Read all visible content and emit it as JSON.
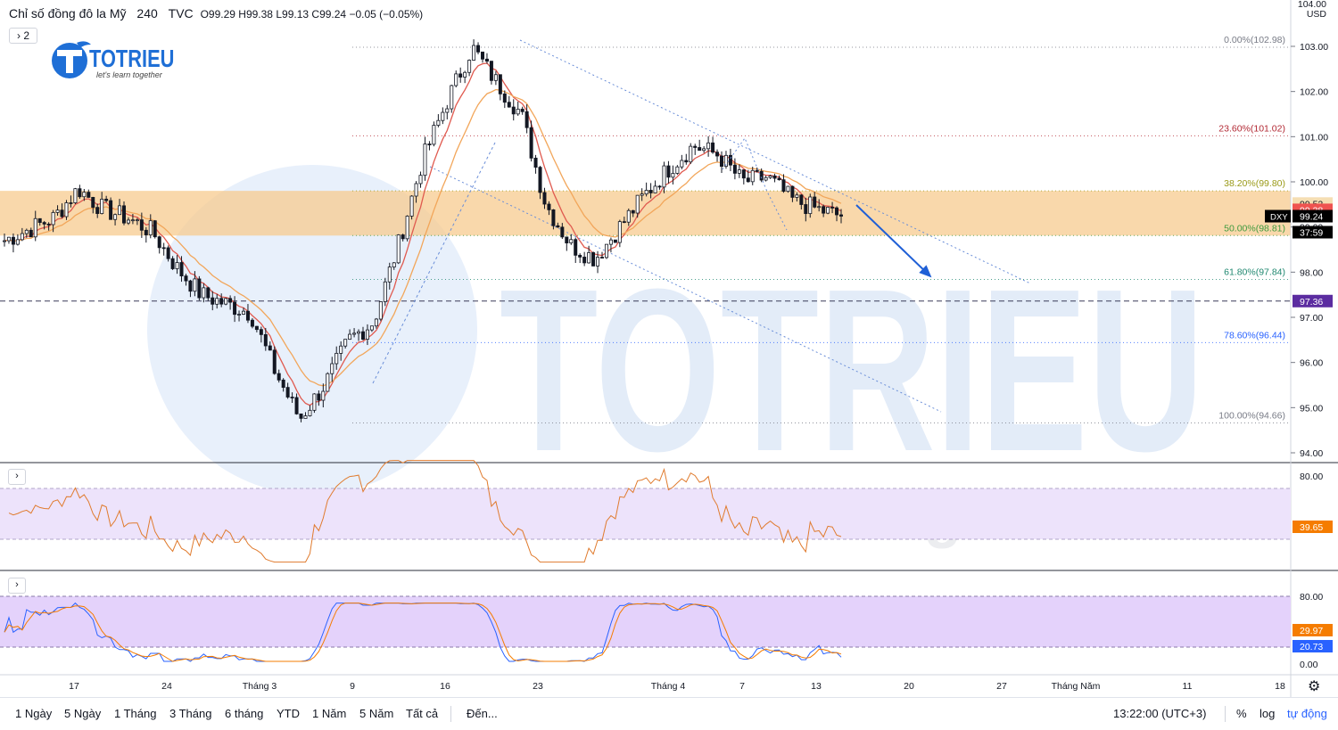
{
  "header": {
    "symbol": "Chỉ số đồng đô la Mỹ",
    "interval": "240",
    "source": "TVC",
    "open_label": "O",
    "open": "99.29",
    "high_label": "H",
    "high": "99.38",
    "low_label": "L",
    "low": "99.13",
    "close_label": "C",
    "close": "99.24",
    "change": "−0.05 (−0.05%)",
    "collapsed_count": "2"
  },
  "logo": {
    "name": "TOTRIEU",
    "tagline": "let's learn together"
  },
  "watermark": {
    "title": "TOTRIEU",
    "tagline": "let's learn together"
  },
  "price_scale": {
    "currency_top": "104.00",
    "currency": "USD",
    "ticks": [
      "103.00",
      "102.00",
      "101.00",
      "100.00",
      "99.00",
      "98.00",
      "97.00",
      "96.00",
      "95.00",
      "94.00"
    ]
  },
  "price_badges": [
    {
      "text": "99.52",
      "price": 99.52,
      "bg": "#f5deb3",
      "fg": "#131722"
    },
    {
      "text": "99.38",
      "price": 99.38,
      "bg": "#ef5350",
      "fg": "#ffffff"
    },
    {
      "text": "99.24",
      "price": 99.24,
      "bg": "#000000",
      "fg": "#ffffff",
      "tag": "DXY"
    },
    {
      "text": "37:59",
      "price": 98.92,
      "bg": "#000000",
      "fg": "#ffffff"
    },
    {
      "text": "97.36",
      "price": 97.36,
      "bg": "#5b2ca0",
      "fg": "#ffffff"
    }
  ],
  "fibonacci": [
    {
      "label": "0.00%(102.98)",
      "price": 102.98,
      "color": "#787b86"
    },
    {
      "label": "23.60%(101.02)",
      "price": 101.02,
      "color": "#b22833"
    },
    {
      "label": "38.20%(99.80)",
      "price": 99.8,
      "color": "#9a9a18"
    },
    {
      "label": "50.00%(98.81)",
      "price": 98.81,
      "color": "#3f9a3f"
    },
    {
      "label": "61.80%(97.84)",
      "price": 97.84,
      "color": "#208870"
    },
    {
      "label": "78.60%(96.44)",
      "price": 96.44,
      "color": "#2962ff"
    },
    {
      "label": "100.00%(94.66)",
      "price": 94.66,
      "color": "#787b86"
    }
  ],
  "zone": {
    "top": 99.8,
    "bottom": 98.81,
    "color": "#f7c98a"
  },
  "horizontal_line_price": 97.36,
  "rsi_panel": {
    "ticks": [
      "80.00"
    ],
    "value": "39.65",
    "value_bg": "#f57c00",
    "band": [
      30,
      70
    ],
    "line_color": "#f57c00"
  },
  "stoch_panel": {
    "ticks": [
      "80.00",
      "0.00"
    ],
    "value_k": "29.97",
    "value_d": "20.73",
    "k_bg": "#f57c00",
    "d_bg": "#2962ff"
  },
  "time_axis": [
    "17",
    "24",
    "Tháng 3",
    "9",
    "16",
    "23",
    "Tháng 4",
    "7",
    "13",
    "20",
    "27",
    "Tháng Năm",
    "11",
    "18"
  ],
  "bottom_bar": {
    "ranges": [
      "1 Ngày",
      "5 Ngày",
      "1 Tháng",
      "3 Tháng",
      "6 tháng",
      "YTD",
      "1 Năm",
      "5 Năm",
      "Tất cả"
    ],
    "goto": "Đến...",
    "clock": "13:22:00 (UTC+3)",
    "percent": "%",
    "log": "log",
    "auto": "tự động",
    "accent": "#2962ff"
  },
  "chart_data": {
    "type": "candlestick",
    "title": "Chỉ số đồng đô la Mỹ · 240 · TVC",
    "ylabel": "USD",
    "ylim": [
      93.8,
      104.0
    ],
    "x_ticks": [
      "17",
      "24",
      "Tháng 3",
      "9",
      "16",
      "23",
      "Tháng 4",
      "7",
      "13",
      "20",
      "27",
      "Tháng Năm",
      "11",
      "18"
    ],
    "close_path": [
      {
        "x": "Feb 12",
        "y": 98.7
      },
      {
        "x": "Feb 17",
        "y": 98.95
      },
      {
        "x": "Feb 19",
        "y": 99.2
      },
      {
        "x": "Feb 20",
        "y": 99.85
      },
      {
        "x": "Feb 21",
        "y": 99.4
      },
      {
        "x": "Feb 24",
        "y": 99.2
      },
      {
        "x": "Feb 26",
        "y": 98.9
      },
      {
        "x": "Feb 28",
        "y": 98.1
      },
      {
        "x": "Mar 2",
        "y": 97.5
      },
      {
        "x": "Mar 4",
        "y": 97.3
      },
      {
        "x": "Mar 6",
        "y": 97.1
      },
      {
        "x": "Mar 8",
        "y": 95.8
      },
      {
        "x": "Mar 9",
        "y": 94.75
      },
      {
        "x": "Mar 10",
        "y": 95.5
      },
      {
        "x": "Mar 12",
        "y": 96.5
      },
      {
        "x": "Mar 13",
        "y": 96.9
      },
      {
        "x": "Mar 16",
        "y": 98.6
      },
      {
        "x": "Mar 18",
        "y": 100.5
      },
      {
        "x": "Mar 19",
        "y": 101.8
      },
      {
        "x": "Mar 20",
        "y": 102.98
      },
      {
        "x": "Mar 23",
        "y": 102.2
      },
      {
        "x": "Mar 24",
        "y": 101.5
      },
      {
        "x": "Mar 26",
        "y": 99.5
      },
      {
        "x": "Mar 27",
        "y": 98.6
      },
      {
        "x": "Mar 30",
        "y": 98.3
      },
      {
        "x": "Mar 31",
        "y": 99.0
      },
      {
        "x": "Apr 2",
        "y": 99.7
      },
      {
        "x": "Apr 3",
        "y": 100.3
      },
      {
        "x": "Apr 6",
        "y": 100.8
      },
      {
        "x": "Apr 7",
        "y": 100.6
      },
      {
        "x": "Apr 8",
        "y": 100.0
      },
      {
        "x": "Apr 9",
        "y": 100.1
      },
      {
        "x": "Apr 10",
        "y": 99.6
      },
      {
        "x": "Apr 13",
        "y": 99.4
      },
      {
        "x": "Apr 14",
        "y": 99.24
      }
    ],
    "last": {
      "open": 99.29,
      "high": 99.38,
      "low": 99.13,
      "close": 99.24
    },
    "fibonacci_levels": [
      {
        "ratio": "0.00%",
        "price": 102.98
      },
      {
        "ratio": "23.60%",
        "price": 101.02
      },
      {
        "ratio": "38.20%",
        "price": 99.8
      },
      {
        "ratio": "50.00%",
        "price": 98.81
      },
      {
        "ratio": "61.80%",
        "price": 97.84
      },
      {
        "ratio": "78.60%",
        "price": 96.44
      },
      {
        "ratio": "100.00%",
        "price": 94.66
      }
    ],
    "rsi": {
      "last": 39.65,
      "band": [
        30,
        70
      ],
      "ticks": [
        "80.00"
      ]
    },
    "stochastic": {
      "k_last": 29.97,
      "d_last": 20.73,
      "band": [
        20,
        80
      ],
      "ticks": [
        "80.00",
        "0.00"
      ]
    }
  }
}
